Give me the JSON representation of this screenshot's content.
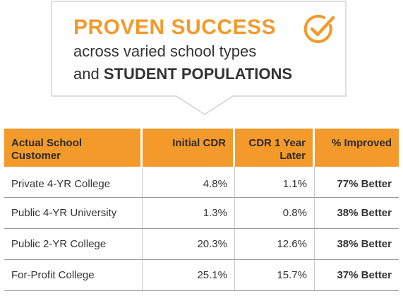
{
  "colors": {
    "accent": "#f39a2b",
    "text": "#333333",
    "banner_border": "#c9c9c9"
  },
  "banner": {
    "title": "PROVEN SUCCESS",
    "line2": "across varied school types",
    "line3_prefix": "and ",
    "line3_bold": "STUDENT POPULATIONS",
    "icon": "checkmark-circle-icon"
  },
  "table": {
    "headers": {
      "customer": "Actual School Customer",
      "initial": "Initial CDR",
      "later": "CDR 1 Year Later",
      "improved": "% Improved"
    },
    "rows": [
      {
        "customer": "Private 4-YR College",
        "initial": "4.8%",
        "later": "1.1%",
        "improved": "77% Better"
      },
      {
        "customer": "Public 4-YR University",
        "initial": "1.3%",
        "later": "0.8%",
        "improved": "38% Better"
      },
      {
        "customer": "Public 2-YR College",
        "initial": "20.3%",
        "later": "12.6%",
        "improved": "38% Better"
      },
      {
        "customer": "For-Profit College",
        "initial": "25.1%",
        "later": "15.7%",
        "improved": "37% Better"
      }
    ]
  }
}
